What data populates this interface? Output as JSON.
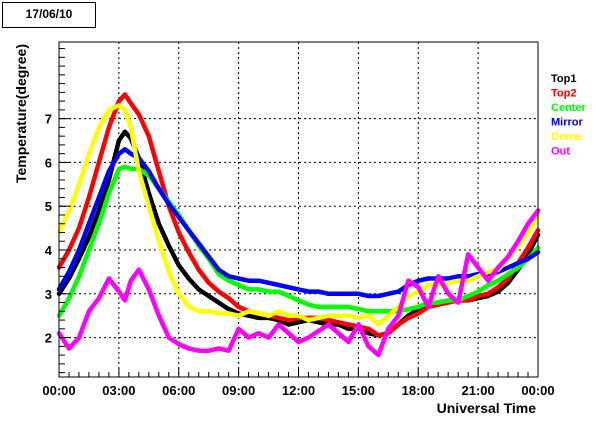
{
  "date_label": "17/06/10",
  "chart_data": {
    "type": "line",
    "title": "",
    "xlabel": "Universal Time",
    "ylabel": "Temperature(degree)",
    "xlim": [
      0,
      24
    ],
    "ylim": [
      1.1,
      8.75
    ],
    "x_ticks": [
      {
        "v": 0,
        "label": "00:00"
      },
      {
        "v": 3,
        "label": "03:00"
      },
      {
        "v": 6,
        "label": "06:00"
      },
      {
        "v": 9,
        "label": "09:00"
      },
      {
        "v": 12,
        "label": "12:00"
      },
      {
        "v": 15,
        "label": "15:00"
      },
      {
        "v": 18,
        "label": "18:00"
      },
      {
        "v": 21,
        "label": "21:00"
      },
      {
        "v": 24,
        "label": "00:00"
      }
    ],
    "y_ticks": [
      {
        "v": 2,
        "label": "2"
      },
      {
        "v": 3,
        "label": "3"
      },
      {
        "v": 4,
        "label": "4"
      },
      {
        "v": 5,
        "label": "5"
      },
      {
        "v": 6,
        "label": "6"
      },
      {
        "v": 7,
        "label": "7"
      }
    ],
    "grid": true,
    "legend_position": "right",
    "series": [
      {
        "name": "Top1",
        "color": "#000000",
        "x": [
          0,
          0.5,
          1,
          1.5,
          2,
          2.5,
          3,
          3.3,
          3.6,
          4,
          4.5,
          5,
          5.5,
          6,
          6.5,
          7,
          7.5,
          8,
          8.5,
          9,
          9.5,
          10,
          10.5,
          11,
          11.5,
          12,
          12.5,
          13,
          13.5,
          14,
          14.5,
          15,
          15.5,
          16,
          16.5,
          17,
          17.5,
          18,
          18.5,
          19,
          19.5,
          20,
          20.5,
          21,
          21.5,
          22,
          22.5,
          23,
          23.5,
          24
        ],
        "y": [
          3.0,
          3.35,
          3.8,
          4.3,
          4.9,
          5.6,
          6.5,
          6.7,
          6.55,
          6.1,
          5.3,
          4.6,
          4.1,
          3.65,
          3.35,
          3.1,
          2.95,
          2.8,
          2.65,
          2.55,
          2.5,
          2.45,
          2.45,
          2.4,
          2.3,
          2.35,
          2.4,
          2.35,
          2.3,
          2.3,
          2.2,
          2.2,
          2.1,
          2.05,
          2.1,
          2.3,
          2.5,
          2.65,
          2.7,
          2.8,
          2.85,
          2.85,
          2.85,
          2.9,
          2.95,
          3.05,
          3.25,
          3.55,
          3.9,
          4.35
        ]
      },
      {
        "name": "Top2",
        "color": "#ff0000",
        "x": [
          0,
          0.5,
          1,
          1.5,
          2,
          2.5,
          3,
          3.3,
          3.6,
          4,
          4.5,
          5,
          5.5,
          6,
          6.5,
          7,
          7.5,
          8,
          8.5,
          9,
          9.5,
          10,
          10.5,
          11,
          11.5,
          12,
          12.5,
          13,
          13.5,
          14,
          14.5,
          15,
          15.5,
          16,
          16.5,
          17,
          17.5,
          18,
          18.5,
          19,
          19.5,
          20,
          20.5,
          21,
          21.5,
          22,
          22.5,
          23,
          23.5,
          24
        ],
        "y": [
          3.6,
          4.0,
          4.5,
          5.2,
          6.0,
          6.8,
          7.4,
          7.55,
          7.35,
          7.1,
          6.6,
          5.8,
          5.0,
          4.4,
          3.95,
          3.55,
          3.25,
          3.05,
          2.9,
          2.7,
          2.6,
          2.55,
          2.5,
          2.45,
          2.4,
          2.45,
          2.45,
          2.45,
          2.4,
          2.35,
          2.3,
          2.25,
          2.2,
          2.05,
          2.1,
          2.3,
          2.45,
          2.55,
          2.7,
          2.75,
          2.8,
          2.85,
          2.85,
          2.95,
          3.0,
          3.15,
          3.35,
          3.7,
          4.05,
          4.45
        ]
      },
      {
        "name": "Center",
        "color": "#00ff00",
        "x": [
          0,
          0.5,
          1,
          1.5,
          2,
          2.5,
          3,
          3.3,
          3.6,
          4,
          4.5,
          5,
          5.5,
          6,
          6.5,
          7,
          7.5,
          8,
          8.5,
          9,
          9.5,
          10,
          10.5,
          11,
          11.5,
          12,
          12.5,
          13,
          13.5,
          14,
          14.5,
          15,
          15.5,
          16,
          16.5,
          17,
          17.5,
          18,
          18.5,
          19,
          19.5,
          20,
          20.5,
          21,
          21.5,
          22,
          22.5,
          23,
          23.5,
          24
        ],
        "y": [
          2.5,
          2.9,
          3.4,
          4.0,
          4.6,
          5.3,
          5.85,
          5.9,
          5.85,
          5.85,
          5.7,
          5.4,
          5.1,
          4.8,
          4.45,
          4.1,
          3.8,
          3.45,
          3.3,
          3.2,
          3.1,
          3.1,
          3.05,
          3.05,
          2.95,
          2.85,
          2.75,
          2.7,
          2.7,
          2.7,
          2.7,
          2.65,
          2.6,
          2.6,
          2.6,
          2.6,
          2.65,
          2.7,
          2.8,
          2.8,
          2.85,
          2.85,
          2.95,
          3.05,
          3.2,
          3.3,
          3.45,
          3.6,
          3.8,
          4.05
        ]
      },
      {
        "name": "Mirror",
        "color": "#0000ff",
        "x": [
          0,
          0.5,
          1,
          1.5,
          2,
          2.5,
          3,
          3.3,
          3.6,
          4,
          4.5,
          5,
          5.5,
          6,
          6.5,
          7,
          7.5,
          8,
          8.5,
          9,
          9.5,
          10,
          10.5,
          11,
          11.5,
          12,
          12.5,
          13,
          13.5,
          14,
          14.5,
          15,
          15.5,
          16,
          16.5,
          17,
          17.5,
          18,
          18.5,
          19,
          19.5,
          20,
          20.5,
          21,
          21.5,
          22,
          22.5,
          23,
          23.5,
          24
        ],
        "y": [
          3.1,
          3.5,
          4.0,
          4.6,
          5.2,
          5.8,
          6.2,
          6.3,
          6.2,
          6.1,
          5.8,
          5.4,
          5.05,
          4.75,
          4.45,
          4.15,
          3.85,
          3.55,
          3.4,
          3.35,
          3.3,
          3.3,
          3.25,
          3.2,
          3.15,
          3.1,
          3.05,
          3.05,
          3.0,
          3.0,
          3.0,
          3.0,
          2.95,
          2.95,
          3.0,
          3.05,
          3.2,
          3.3,
          3.35,
          3.35,
          3.35,
          3.4,
          3.4,
          3.45,
          3.45,
          3.5,
          3.6,
          3.7,
          3.8,
          3.95
        ]
      },
      {
        "name": "Dome",
        "color": "#ffff00",
        "x": [
          0,
          0.5,
          1,
          1.5,
          2,
          2.5,
          3,
          3.3,
          3.6,
          4,
          4.5,
          5,
          5.5,
          6,
          6.5,
          7,
          7.5,
          8,
          8.5,
          9,
          9.5,
          10,
          10.5,
          11,
          11.5,
          12,
          12.5,
          13,
          13.5,
          14,
          14.5,
          15,
          15.5,
          16,
          16.5,
          17,
          17.5,
          18,
          18.5,
          19,
          19.5,
          20,
          20.5,
          21,
          21.5,
          22,
          22.5,
          23,
          23.5,
          24
        ],
        "y": [
          4.4,
          4.9,
          5.5,
          6.2,
          6.8,
          7.2,
          7.3,
          7.2,
          6.8,
          5.8,
          5.0,
          4.2,
          3.5,
          3.0,
          2.7,
          2.6,
          2.6,
          2.55,
          2.55,
          2.5,
          2.6,
          2.55,
          2.5,
          2.6,
          2.5,
          2.5,
          2.4,
          2.45,
          2.5,
          2.5,
          2.5,
          2.45,
          2.5,
          2.3,
          2.5,
          2.7,
          2.95,
          3.05,
          3.2,
          3.2,
          3.25,
          3.3,
          3.3,
          3.4,
          3.5,
          3.55,
          3.8,
          4.1,
          4.4,
          4.8
        ]
      },
      {
        "name": "Out",
        "color": "#ff00ff",
        "x": [
          0,
          0.5,
          1,
          1.5,
          2,
          2.5,
          3,
          3.3,
          3.6,
          4,
          4.5,
          5,
          5.5,
          6,
          6.5,
          7,
          7.5,
          8,
          8.5,
          9,
          9.5,
          10,
          10.5,
          11,
          11.5,
          12,
          12.5,
          13,
          13.5,
          14,
          14.5,
          15,
          15.5,
          16,
          16.5,
          17,
          17.5,
          18,
          18.5,
          19,
          19.5,
          20,
          20.5,
          21,
          21.5,
          22,
          22.5,
          23,
          23.5,
          24
        ],
        "y": [
          2.1,
          1.75,
          2.0,
          2.6,
          2.9,
          3.35,
          3.05,
          2.85,
          3.3,
          3.55,
          3.1,
          2.5,
          2.0,
          1.85,
          1.75,
          1.7,
          1.7,
          1.75,
          1.7,
          2.2,
          2.0,
          2.1,
          2.0,
          2.3,
          2.1,
          1.9,
          2.0,
          2.15,
          2.3,
          2.1,
          1.9,
          2.3,
          1.8,
          1.6,
          2.2,
          2.5,
          3.3,
          3.15,
          2.7,
          3.4,
          3.0,
          2.8,
          3.9,
          3.6,
          3.3,
          3.6,
          3.85,
          4.2,
          4.6,
          4.9
        ]
      }
    ]
  }
}
